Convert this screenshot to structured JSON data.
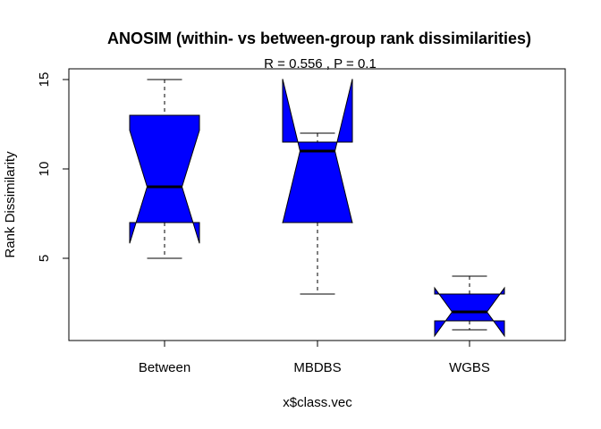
{
  "chart_data": {
    "type": "boxplot",
    "title": "ANOSIM (within- vs between-group rank dissimilarities)",
    "subtitle": "R =  0.556 ,  P =  0.1",
    "xlabel": "x$class.vec",
    "ylabel": "Rank Dissimilarity",
    "categories": [
      "Between",
      "MBDBS",
      "WGBS"
    ],
    "y_ticks": [
      5,
      10,
      15
    ],
    "ylim": [
      0.4,
      15.6
    ],
    "notched": true,
    "fill_color": "#0000ff",
    "boxes": [
      {
        "lower_whisker": 5,
        "q1": 7,
        "median": 9,
        "q3": 13,
        "upper_whisker": 15,
        "notch_low": 5.84,
        "notch_high": 12.16
      },
      {
        "lower_whisker": 3,
        "q1": 7,
        "median": 11,
        "q3": 11.5,
        "upper_whisker": 12,
        "notch_low": 6.97,
        "notch_high": 15.03
      },
      {
        "lower_whisker": 1,
        "q1": 1.5,
        "median": 2,
        "q3": 3,
        "upper_whisker": 4,
        "notch_low": 0.66,
        "notch_high": 3.34
      }
    ]
  }
}
